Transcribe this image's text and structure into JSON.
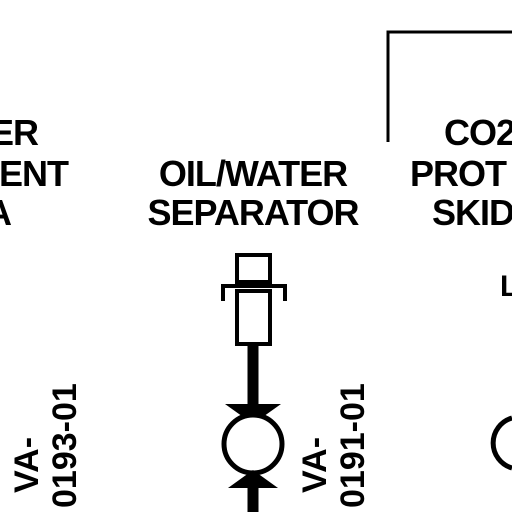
{
  "diagram": {
    "left_area_label": {
      "line1": "ER",
      "line2": "IENT",
      "line3": "A"
    },
    "center_equipment_label": {
      "line1": "OIL/WATER",
      "line2": "SEPARATOR"
    },
    "right_equipment_label": {
      "line1": "CO2",
      "line2": "PROT",
      "line3": "SKID"
    },
    "right_partial_letter": "L",
    "valve_tag_left": {
      "prefix": "VA-",
      "number": "0193-01"
    },
    "valve_tag_center": {
      "prefix": "VA-",
      "number": "0191-01"
    },
    "colors": {
      "line": "#000000",
      "background": "#ffffff"
    }
  }
}
